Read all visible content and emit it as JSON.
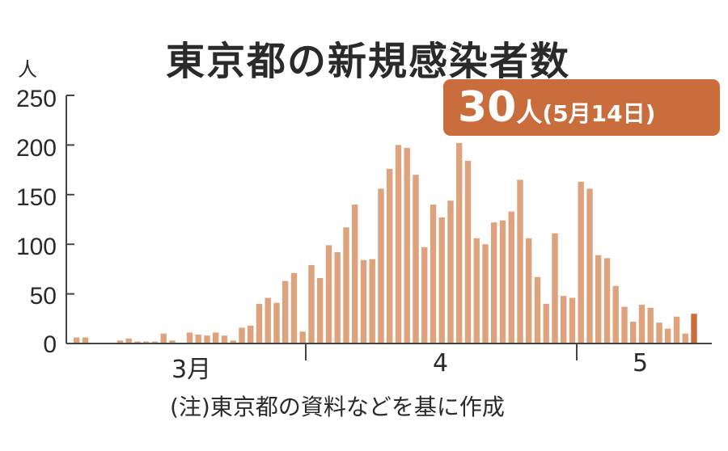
{
  "chart_data": {
    "type": "bar",
    "title": "東京都の新規感染者数",
    "unit_label": "人",
    "ylim": [
      0,
      250
    ],
    "yticks": [
      "0",
      "50",
      "100",
      "150",
      "200",
      "250"
    ],
    "xtick_labels": [
      "3月",
      "4",
      "5"
    ],
    "bar_color": "#dea37c",
    "highlight_color": "#c96d3d",
    "annotation": {
      "value": "30",
      "unit": "人",
      "date": "(5月14日)"
    },
    "note": "(注)東京都の資料などを基に作成",
    "values": [
      6,
      6,
      0,
      0,
      0,
      3,
      5,
      2,
      2,
      2,
      10,
      3,
      0,
      11,
      9,
      8,
      11,
      8,
      3,
      16,
      18,
      40,
      46,
      41,
      63,
      71,
      12,
      79,
      66,
      99,
      92,
      117,
      140,
      84,
      85,
      156,
      176,
      200,
      197,
      170,
      97,
      140,
      127,
      144,
      202,
      184,
      106,
      100,
      122,
      124,
      133,
      165,
      106,
      67,
      40,
      111,
      48,
      46,
      163,
      156,
      89,
      86,
      58,
      37,
      22,
      39,
      36,
      21,
      15,
      27,
      10,
      30
    ]
  }
}
